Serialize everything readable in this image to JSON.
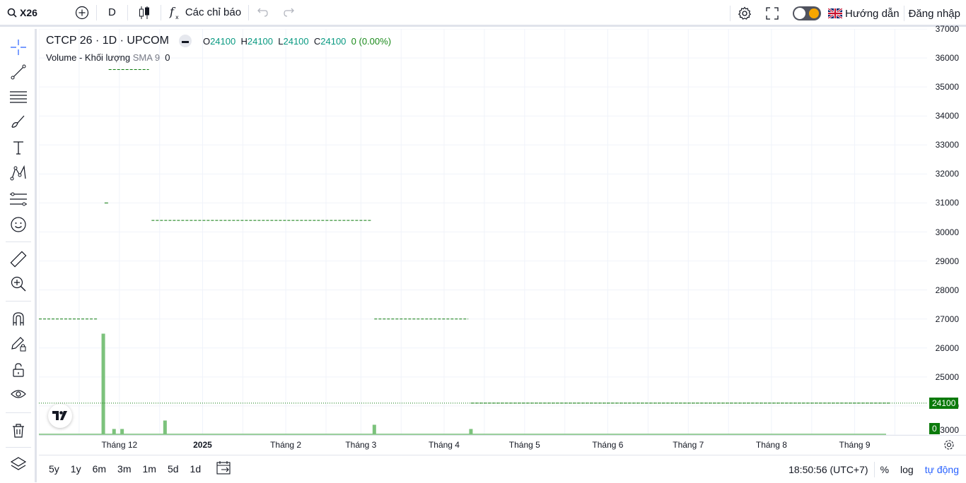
{
  "topbar": {
    "symbol": "X26",
    "interval": "D",
    "indicators_label": "Các chỉ báo",
    "guide_label": "Hướng dẫn",
    "login_label": "Đăng nhập"
  },
  "legend": {
    "title": "CTCP 26 · 1D · UPCOM",
    "o_label": "O",
    "o_value": "24100",
    "h_label": "H",
    "h_value": "24100",
    "l_label": "L",
    "l_value": "24100",
    "c_label": "C",
    "c_value": "24100",
    "change": "0 (0.00%)",
    "volume_label": "Volume - Khối lượng",
    "sma_label": "SMA 9",
    "volume_value": "0"
  },
  "price_axis": {
    "labels": [
      "37000",
      "36000",
      "35000",
      "34000",
      "33000",
      "32000",
      "31000",
      "30000",
      "29000",
      "28000",
      "27000",
      "26000",
      "25000",
      "24000",
      "23000"
    ],
    "current_price": "24100",
    "volume_badge": "0"
  },
  "time_axis": {
    "labels": [
      "Tháng 12",
      "2025",
      "Tháng 2",
      "Tháng 3",
      "Tháng 4",
      "Tháng 5",
      "Tháng 6",
      "Tháng 7",
      "Tháng 8",
      "Tháng 9"
    ]
  },
  "bottombar": {
    "ranges": [
      "5y",
      "1y",
      "6m",
      "3m",
      "1m",
      "5d",
      "1d"
    ],
    "clock": "18:50:56 (UTC+7)",
    "percent_label": "%",
    "log_label": "log",
    "auto_label": "tự động"
  },
  "chart_data": {
    "type": "line",
    "title": "CTCP 26 · 1D · UPCOM",
    "price_series": [
      {
        "date": "2024-11-01",
        "price": 27000
      },
      {
        "date": "2024-11-20",
        "price": 27000
      },
      {
        "date": "2024-11-23",
        "price": 27000
      },
      {
        "date": "2024-11-26",
        "price": 31000
      },
      {
        "date": "2024-11-27",
        "price": 35600
      },
      {
        "date": "2024-12-12",
        "price": 35600
      },
      {
        "date": "2024-12-13",
        "price": 30400
      },
      {
        "date": "2025-03-05",
        "price": 30400
      },
      {
        "date": "2025-03-06",
        "price": 27000
      },
      {
        "date": "2025-04-10",
        "price": 27000
      },
      {
        "date": "2025-04-11",
        "price": 24100
      },
      {
        "date": "2025-09-14",
        "price": 24100
      }
    ],
    "volume_bars": [
      {
        "date": "2024-11-25",
        "relative": 0.95
      },
      {
        "date": "2024-11-29",
        "relative": 0.05
      },
      {
        "date": "2024-12-02",
        "relative": 0.05
      },
      {
        "date": "2024-12-18",
        "relative": 0.13
      },
      {
        "date": "2025-03-06",
        "relative": 0.09
      },
      {
        "date": "2025-04-11",
        "relative": 0.05
      }
    ],
    "ylim": [
      23000,
      37000
    ],
    "xlim": [
      "2024-11-01",
      "2025-09-28"
    ],
    "current_price": 24100,
    "grid": true,
    "colors": {
      "price": "#0b7a0b",
      "volume": "#7cc27c",
      "grid": "#f0f3fa"
    }
  }
}
